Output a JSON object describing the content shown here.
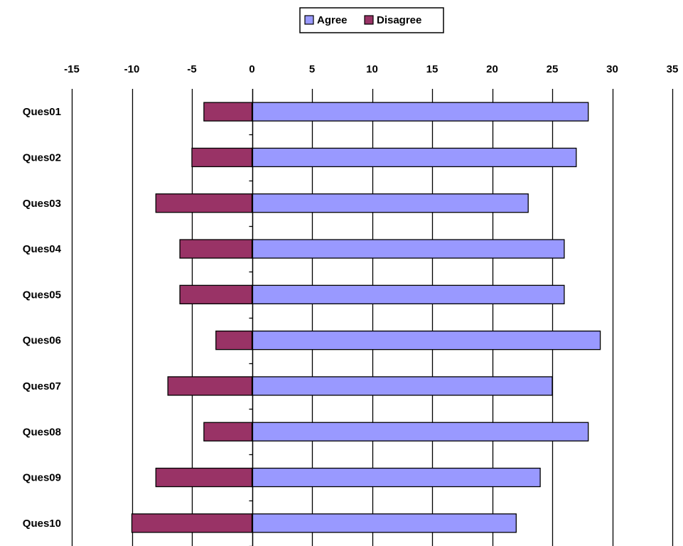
{
  "chart_data": {
    "type": "bar",
    "orientation": "horizontal",
    "stacking": "diverging",
    "categories": [
      "Ques01",
      "Ques02",
      "Ques03",
      "Ques04",
      "Ques05",
      "Ques06",
      "Ques07",
      "Ques08",
      "Ques09",
      "Ques10"
    ],
    "series": [
      {
        "name": "Agree",
        "color": "#9999FF",
        "values": [
          28,
          27,
          23,
          26,
          26,
          29,
          25,
          28,
          24,
          22
        ]
      },
      {
        "name": "Disagree",
        "color": "#993366",
        "values": [
          -4,
          -5,
          -8,
          -6,
          -6,
          -3,
          -7,
          -4,
          -8,
          -10
        ]
      }
    ],
    "xlim": [
      -15,
      35
    ],
    "xticks": [
      -15,
      -10,
      -5,
      0,
      5,
      10,
      15,
      20,
      25,
      30,
      35
    ],
    "x_axis_position": "top",
    "grid": "vertical",
    "legend_position": "top-center",
    "title": "",
    "xlabel": "",
    "ylabel": ""
  }
}
